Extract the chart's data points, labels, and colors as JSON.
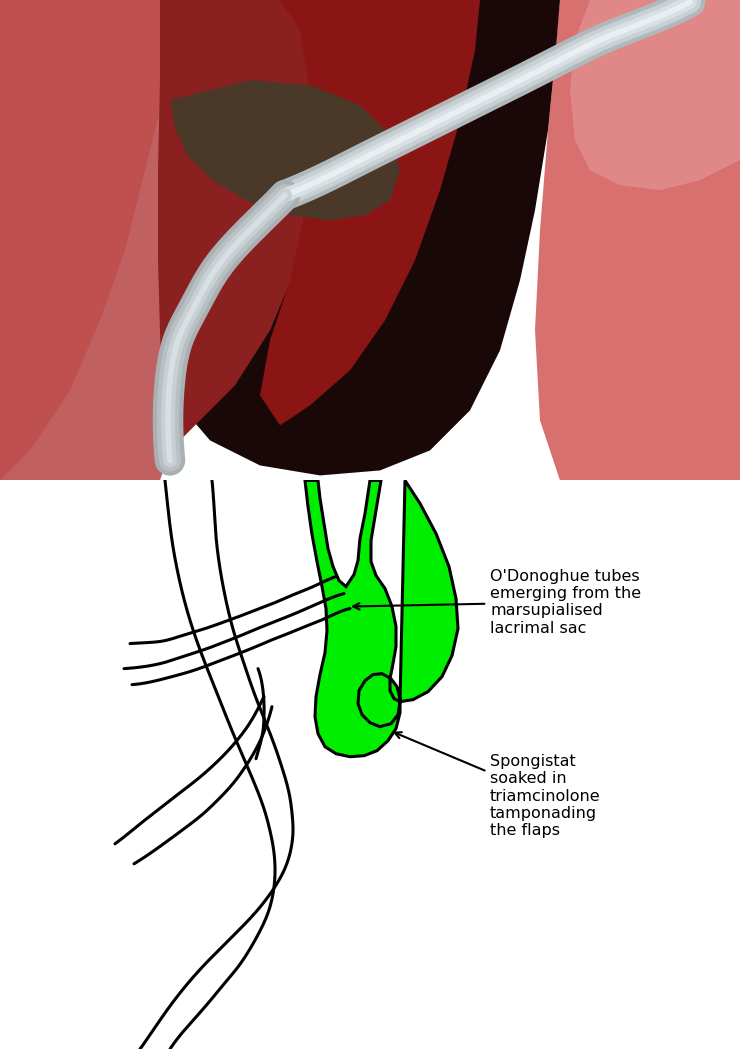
{
  "fig_width": 7.4,
  "fig_height": 10.49,
  "dpi": 100,
  "background_color": "#ffffff",
  "green_color": "#00ee00",
  "black_color": "#000000",
  "line_width": 2.2,
  "annotation1_text": "O'Donoghue tubes\nemerging from the\nmarsupialised\nlacrimal sac",
  "annotation2_text": "Spongistat\nsoaked in\ntriamcinolone\ntamponading\nthe flaps",
  "annotation_fontsize": 11.5
}
